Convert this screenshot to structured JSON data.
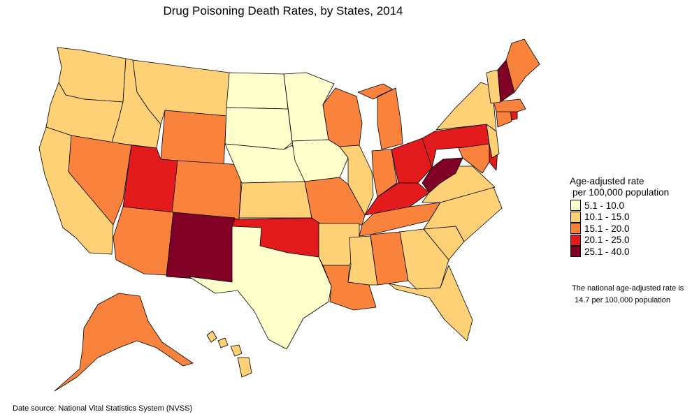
{
  "title": "Drug Poisoning Death Rates, by States, 2014",
  "legend": {
    "title_line1": "Age-adjusted rate",
    "title_line2": "per 100,000 population",
    "classes": [
      {
        "label": "5.1 - 10.0",
        "color": "#FFFFCC"
      },
      {
        "label": "10.1 - 15.0",
        "color": "#FED176"
      },
      {
        "label": "15.1 - 20.0",
        "color": "#F9833C"
      },
      {
        "label": "20.1 - 25.0",
        "color": "#E31A1C"
      },
      {
        "label": "25.1 - 40.0",
        "color": "#800026"
      }
    ]
  },
  "national_note": {
    "line1": "The national age-adjusted rate is",
    "line2": "14.7 per 100,000 population"
  },
  "source": "Date source: National Vital Statistics System (NVSS)",
  "chart_data": {
    "type": "choropleth",
    "region": "United States",
    "year": 2014,
    "value_scale": "class index into legend.classes (0 = 5.1-10.0 ... 4 = 25.1-40.0)",
    "states": {
      "WA": 1,
      "OR": 1,
      "CA": 1,
      "ID": 1,
      "NV": 2,
      "MT": 1,
      "WY": 2,
      "UT": 3,
      "CO": 2,
      "AZ": 2,
      "NM": 4,
      "ND": 0,
      "SD": 0,
      "NE": 0,
      "KS": 1,
      "OK": 3,
      "TX": 0,
      "MN": 0,
      "IA": 0,
      "MO": 2,
      "AR": 1,
      "LA": 2,
      "WI": 2,
      "IL": 1,
      "MI": 2,
      "IN": 2,
      "OH": 3,
      "KY": 3,
      "TN": 2,
      "MS": 1,
      "AL": 2,
      "GA": 1,
      "FL": 1,
      "SC": 1,
      "NC": 1,
      "VA": 1,
      "WV": 4,
      "PA": 3,
      "NY": 1,
      "MD": 2,
      "DE": 3,
      "NJ": 1,
      "CT": 2,
      "RI": 3,
      "MA": 2,
      "VT": 1,
      "NH": 4,
      "ME": 2,
      "AK": 2,
      "HI": 1
    }
  }
}
